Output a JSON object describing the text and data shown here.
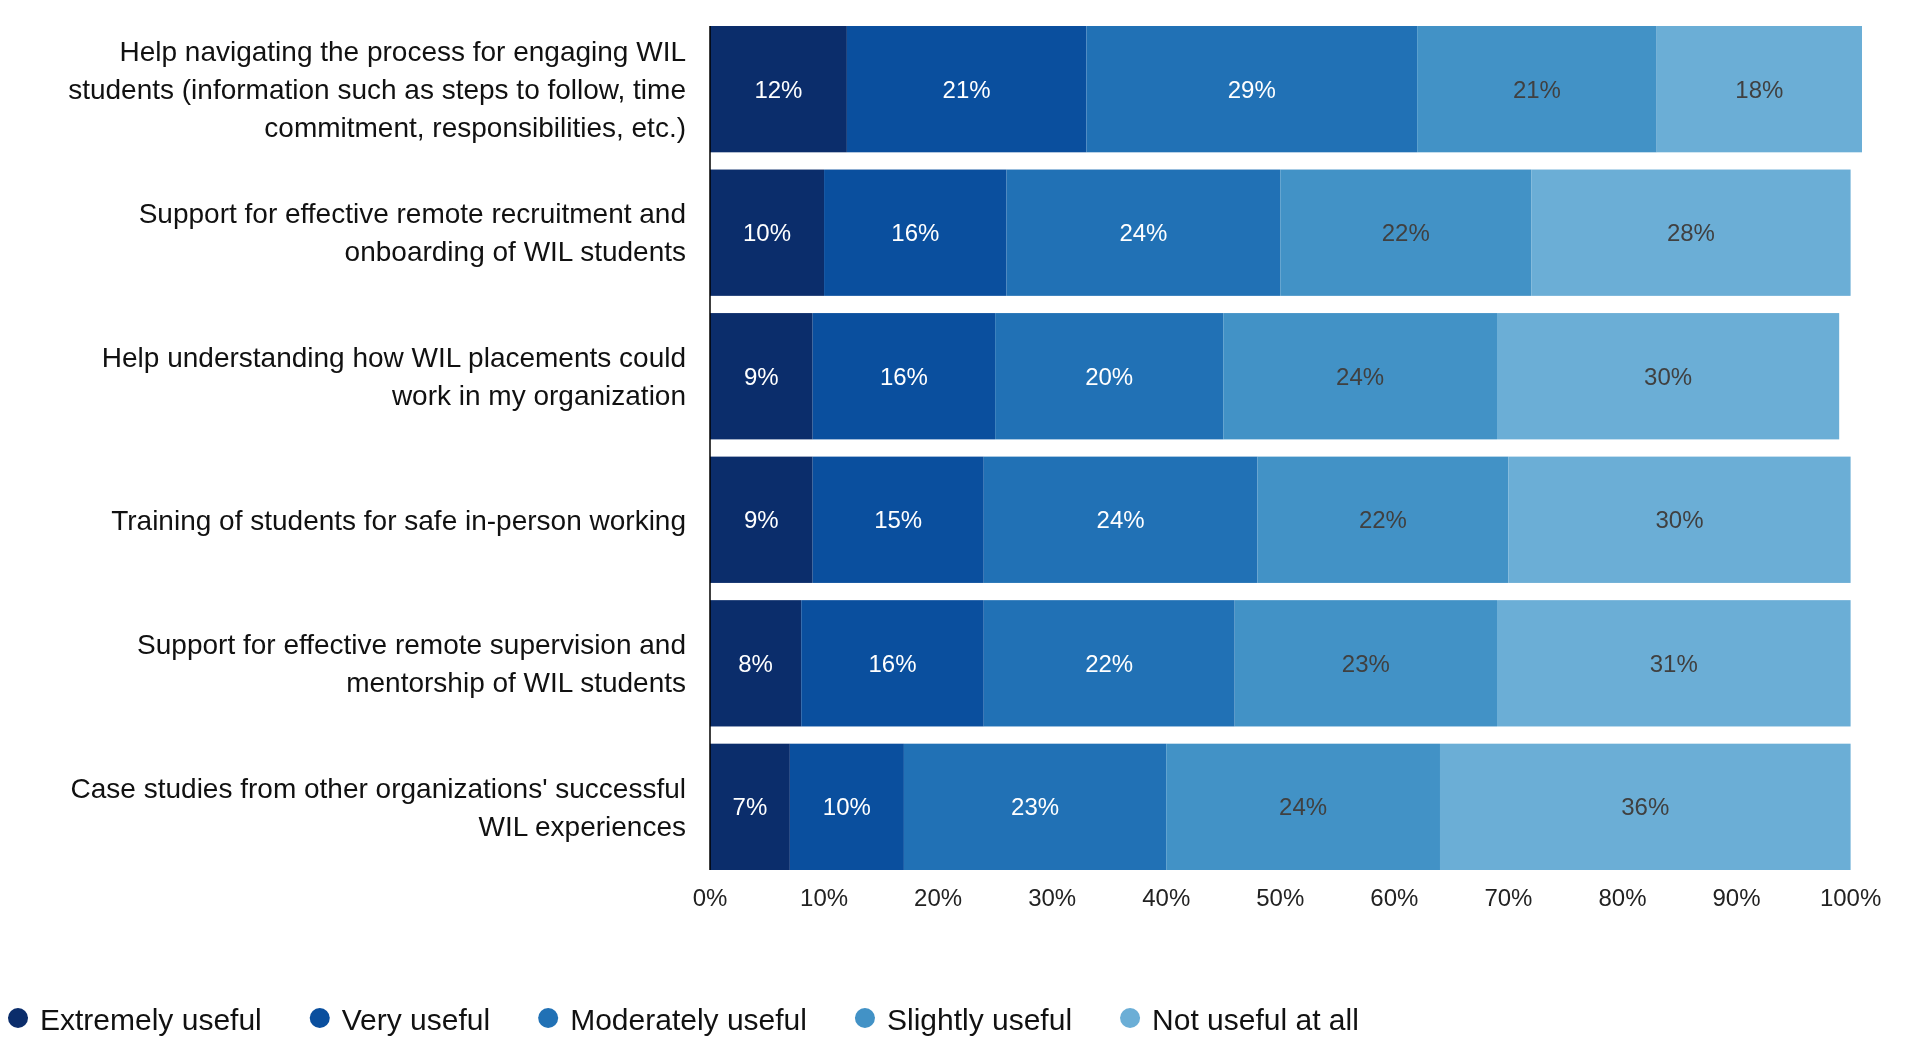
{
  "chart_data": {
    "type": "bar",
    "orientation": "horizontal",
    "stacked": true,
    "categories": [
      "Help navigating the process for engaging WIL students (information such as steps to follow, time commitment, responsibilities, etc.)",
      "Support for effective remote recruitment and onboarding of WIL students",
      "Help understanding how WIL placements could work in my organization",
      "Training of students for safe in-person working",
      "Support for effective remote supervision and mentorship of WIL students",
      "Case studies from other organizations' successful WIL experiences"
    ],
    "series": [
      {
        "name": "Extremely useful",
        "color": "#0b2d6b",
        "values": [
          12,
          10,
          9,
          9,
          8,
          7
        ],
        "value_labels": [
          "12%",
          "10%",
          "9%",
          "9%",
          "8%",
          "7%"
        ]
      },
      {
        "name": "Very useful",
        "color": "#0a4f9e",
        "values": [
          21,
          16,
          16,
          15,
          16,
          10
        ],
        "value_labels": [
          "21%",
          "16%",
          "16%",
          "15%",
          "16%",
          "10%"
        ]
      },
      {
        "name": "Moderately useful",
        "color": "#2171b5",
        "values": [
          29,
          24,
          20,
          24,
          22,
          23
        ],
        "value_labels": [
          "29%",
          "24%",
          "20%",
          "24%",
          "22%",
          "23%"
        ]
      },
      {
        "name": "Slightly useful",
        "color": "#4292c6",
        "values": [
          21,
          22,
          24,
          22,
          23,
          24
        ],
        "value_labels": [
          "21%",
          "22%",
          "24%",
          "22%",
          "23%",
          "24%"
        ]
      },
      {
        "name": "Not useful at all",
        "color": "#6baed6",
        "values": [
          18,
          28,
          30,
          30,
          31,
          36
        ],
        "value_labels": [
          "18%",
          "28%",
          "30%",
          "30%",
          "31%",
          "36%"
        ]
      }
    ],
    "xlim": [
      0,
      101
    ],
    "xticks": [
      {
        "value": 0,
        "label": "0%"
      },
      {
        "value": 10,
        "label": "10%"
      },
      {
        "value": 20,
        "label": "20%"
      },
      {
        "value": 30,
        "label": "30%"
      },
      {
        "value": 40,
        "label": "40%"
      },
      {
        "value": 50,
        "label": "50%"
      },
      {
        "value": 60,
        "label": "60%"
      },
      {
        "value": 70,
        "label": "70%"
      },
      {
        "value": 80,
        "label": "80%"
      },
      {
        "value": 90,
        "label": "90%"
      },
      {
        "value": 100,
        "label": "100%"
      }
    ],
    "grid": false,
    "legend": "bottom"
  }
}
